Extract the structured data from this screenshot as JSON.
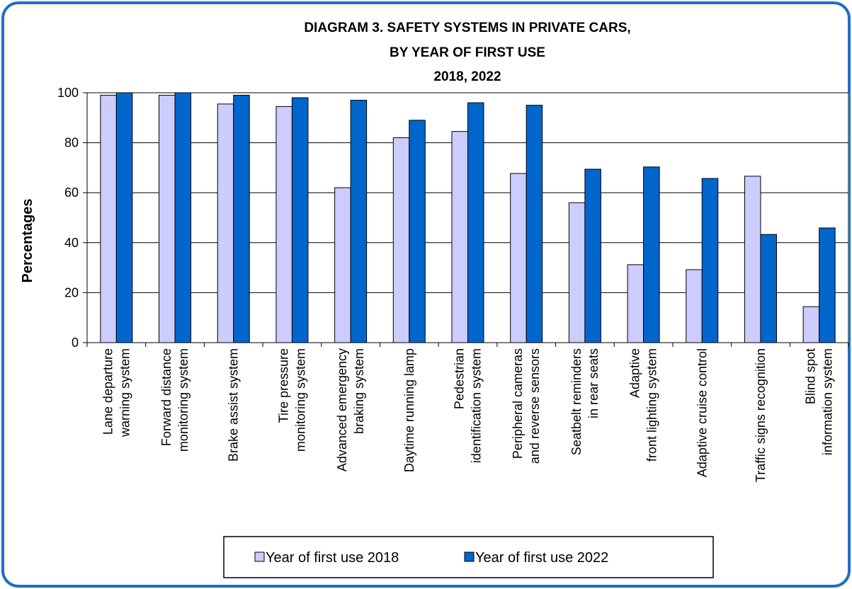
{
  "chart_data": {
    "type": "bar",
    "title": [
      "DIAGRAM 3. SAFETY SYSTEMS IN PRIVATE CARS,",
      "BY YEAR OF FIRST USE",
      "2018, 2022"
    ],
    "y_label": "Percentages",
    "categories": [
      [
        "Lane departure",
        "warning system"
      ],
      [
        "Forward distance",
        "monitoring system"
      ],
      [
        "Brake assist system"
      ],
      [
        "Tire pressure",
        "monitoring system"
      ],
      [
        "Advanced emergency",
        "braking system"
      ],
      [
        "Daytime running lamp"
      ],
      [
        "Pedestrian",
        "identification system"
      ],
      [
        "Peripheral cameras",
        "and reverse sensors"
      ],
      [
        "Seatbelt reminders",
        "in rear seats"
      ],
      [
        "Adaptive",
        "front lighting system"
      ],
      [
        "Adaptive cruise control"
      ],
      [
        "Traffic signs recognition"
      ],
      [
        "Blind spot",
        "information system"
      ]
    ],
    "series": [
      {
        "name": "Year of first use 2018",
        "color": "#ccccff",
        "values": [
          99,
          99,
          95.5,
          94.5,
          62,
          82,
          84.5,
          67.7,
          56,
          31.2,
          29.2,
          66.6,
          14.4
        ]
      },
      {
        "name": "Year of first use 2022",
        "color": "#0066cc",
        "values": [
          100,
          100,
          99,
          98,
          97,
          89,
          96,
          95,
          69.4,
          70.3,
          65.7,
          43.3,
          45.9
        ]
      }
    ],
    "ylim": [
      0,
      100
    ],
    "yticks": [
      0,
      20,
      40,
      60,
      80,
      100
    ],
    "grid": true,
    "legend": "bottom"
  }
}
